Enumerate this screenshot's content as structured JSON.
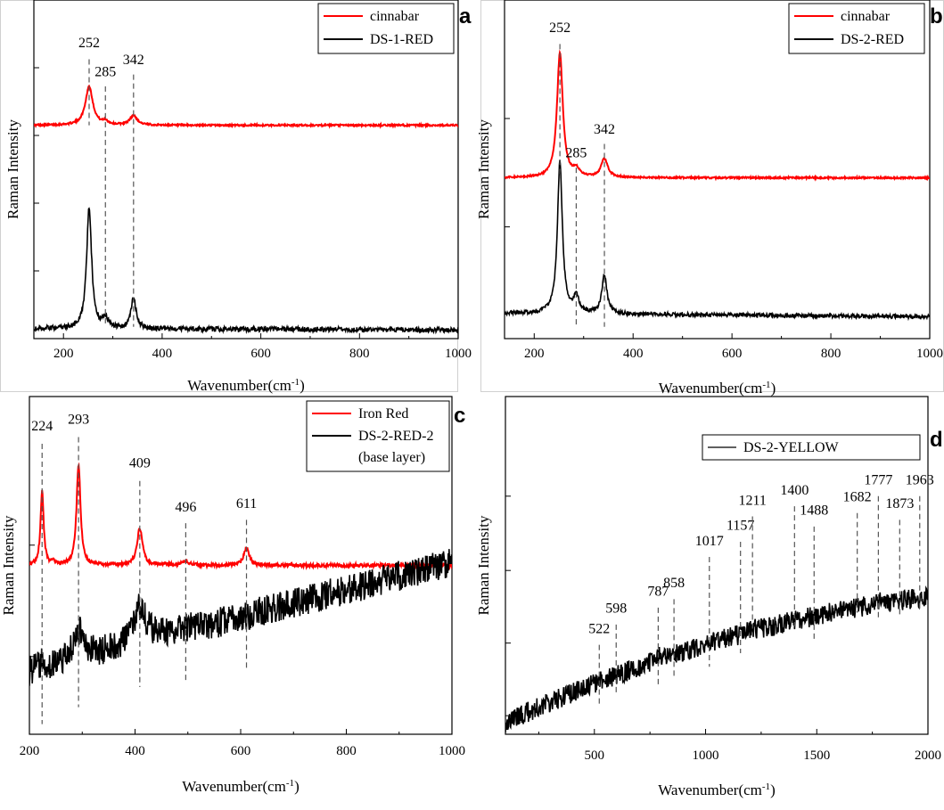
{
  "chart_data": [
    {
      "panel": "a",
      "type": "line",
      "xlabel": "Wavenumber(cm",
      "xlabel_sup": "-1",
      "xlabel_tail": ")",
      "ylabel": "Raman Intensity",
      "xlim": [
        140,
        1000
      ],
      "ylim": [
        0,
        10
      ],
      "xticks": [
        200,
        400,
        600,
        800,
        1000
      ],
      "yticks": [
        2,
        4,
        6,
        8
      ],
      "legend_position": "top-right",
      "series": [
        {
          "name": "cinnabar",
          "color": "#ff0000",
          "baseline": 6.3,
          "baseline_slope": 0,
          "peaks": [
            {
              "x": 252,
              "h": 1.15,
              "w": 9
            },
            {
              "x": 285,
              "h": 0.1,
              "w": 6
            },
            {
              "x": 342,
              "h": 0.28,
              "w": 9
            }
          ],
          "noise": 0.005
        },
        {
          "name": "DS-1-RED",
          "color": "#000000",
          "baseline": 0.3,
          "baseline_slope": -5e-05,
          "peaks": [
            {
              "x": 252,
              "h": 3.6,
              "w": 6
            },
            {
              "x": 285,
              "h": 0.32,
              "w": 6
            },
            {
              "x": 342,
              "h": 0.9,
              "w": 6
            }
          ],
          "noise": 0.015
        }
      ],
      "peak_labels": [
        "252",
        "285",
        "342"
      ],
      "peak_positions": [
        252,
        285,
        342
      ],
      "peak_label_levels": [
        8.6,
        7.75,
        8.1
      ],
      "peak_line_top": [
        8.25,
        7.45,
        7.8
      ],
      "peak_line_bottom": [
        6.3,
        0.4,
        0.35
      ]
    },
    {
      "panel": "b",
      "type": "line",
      "xlabel": "Wavenumber(cm",
      "xlabel_sup": "-1",
      "xlabel_tail": ")",
      "ylabel": "Raman Intensity",
      "xlim": [
        140,
        1000
      ],
      "ylim": [
        0,
        10
      ],
      "xticks": [
        200,
        400,
        600,
        800,
        1000
      ],
      "yticks": [
        3.3,
        6.5
      ],
      "legend_position": "top-right",
      "series": [
        {
          "name": "cinnabar",
          "color": "#ff0000",
          "baseline": 4.75,
          "baseline_slope": 0,
          "peaks": [
            {
              "x": 252,
              "h": 3.7,
              "w": 7
            },
            {
              "x": 285,
              "h": 0.22,
              "w": 7
            },
            {
              "x": 342,
              "h": 0.55,
              "w": 8
            }
          ],
          "noise": 0.005
        },
        {
          "name": "DS-2-RED",
          "color": "#000000",
          "baseline": 0.75,
          "baseline_slope": -0.00012,
          "peaks": [
            {
              "x": 252,
              "h": 4.5,
              "w": 6
            },
            {
              "x": 285,
              "h": 0.45,
              "w": 7
            },
            {
              "x": 342,
              "h": 1.15,
              "w": 6
            }
          ],
          "noise": 0.012
        }
      ],
      "peak_labels": [
        "252",
        "285",
        "342"
      ],
      "peak_positions": [
        252,
        285,
        342
      ],
      "peak_label_levels": [
        9.05,
        5.35,
        6.05
      ],
      "peak_line_top": [
        8.7,
        5.05,
        5.75
      ],
      "peak_line_bottom": [
        4.75,
        0.35,
        0.35
      ]
    },
    {
      "panel": "c",
      "type": "line",
      "xlabel": "Wavenumber(cm",
      "xlabel_sup": "-1",
      "xlabel_tail": ")",
      "ylabel": "Raman Intensity",
      "xlim": [
        200,
        1000
      ],
      "ylim": [
        0,
        10
      ],
      "xticks": [
        200,
        400,
        600,
        800,
        1000
      ],
      "yticks": [
        2.3,
        5.6
      ],
      "legend_position": "top-right",
      "legend_note": "(base  layer)",
      "series": [
        {
          "name": "Iron Red",
          "color": "#ff0000",
          "baseline": 5.0,
          "baseline_slope": 0,
          "peaks": [
            {
              "x": 224,
              "h": 2.2,
              "w": 3.5
            },
            {
              "x": 245,
              "h": 0.1,
              "w": 3
            },
            {
              "x": 293,
              "h": 3.0,
              "w": 4.5
            },
            {
              "x": 409,
              "h": 1.1,
              "w": 6
            },
            {
              "x": 460,
              "h": 0.05,
              "w": 5
            },
            {
              "x": 496,
              "h": 0.15,
              "w": 6
            },
            {
              "x": 611,
              "h": 0.52,
              "w": 6
            }
          ],
          "noise": 0.01
        },
        {
          "name": "DS-2-RED-2",
          "color": "#000000",
          "baseline": 1.85,
          "baseline_slope": 0.00405,
          "peaks": [
            {
              "x": 224,
              "h": 0.2,
              "w": 6
            },
            {
              "x": 293,
              "h": 0.85,
              "w": 12
            },
            {
              "x": 409,
              "h": 1.05,
              "w": 16
            },
            {
              "x": 496,
              "h": 0.1,
              "w": 10
            }
          ],
          "noise": 0.09
        }
      ],
      "peak_labels": [
        "224",
        "293",
        "409",
        "496",
        "611"
      ],
      "peak_positions": [
        224,
        293,
        409,
        496,
        611
      ],
      "peak_label_levels": [
        9.0,
        9.2,
        7.9,
        6.6,
        6.7
      ],
      "peak_line_top": [
        8.6,
        8.8,
        7.5,
        6.25,
        6.35
      ],
      "peak_line_bottom": [
        0.3,
        0.8,
        1.4,
        1.6,
        1.9
      ]
    },
    {
      "panel": "d",
      "type": "line",
      "xlabel": "Wavenumber(cm",
      "xlabel_sup": "-1",
      "xlabel_tail": ")",
      "ylabel": "Raman Intensity",
      "xlim": [
        100,
        2000
      ],
      "ylim": [
        0,
        10
      ],
      "xticks": [
        500,
        1000,
        1500,
        2000
      ],
      "yticks": [
        0.55,
        2.7,
        4.85,
        7.05
      ],
      "legend_position": "top-right",
      "series": [
        {
          "name": "DS-2-YELLOW",
          "color": "#000000",
          "baseline": 0.35,
          "baseline_slope": 0.0031,
          "curve": -6e-07,
          "peaks": [
            {
              "x": 787,
              "h": 0.1,
              "w": 12
            },
            {
              "x": 1211,
              "h": 0.1,
              "w": 12
            },
            {
              "x": 1777,
              "h": 0.08,
              "w": 10
            }
          ],
          "noise": 0.06
        }
      ],
      "peak_labels": [
        "522",
        "598",
        "787",
        "858",
        "1017",
        "1157",
        "1211",
        "1400",
        "1488",
        "1682",
        "1777",
        "1873",
        "1963"
      ],
      "peak_positions": [
        522,
        598,
        787,
        858,
        1017,
        1157,
        1211,
        1400,
        1488,
        1682,
        1777,
        1873,
        1963
      ],
      "peak_label_levels": [
        3.0,
        3.6,
        4.1,
        4.35,
        5.6,
        6.05,
        6.8,
        7.1,
        6.5,
        6.9,
        7.4,
        6.7,
        7.4
      ],
      "peak_line_top": [
        2.65,
        3.25,
        3.75,
        4.0,
        5.25,
        5.7,
        6.45,
        6.75,
        6.15,
        6.55,
        7.05,
        6.35,
        7.05
      ],
      "peak_line_bottom": [
        0.8,
        1.2,
        1.4,
        1.7,
        2.0,
        2.4,
        2.9,
        3.2,
        2.8,
        3.6,
        3.4,
        3.5,
        3.7
      ]
    }
  ],
  "panel_letters": [
    "a",
    "b",
    "c",
    "d"
  ],
  "colors": {
    "red": "#ff0000",
    "black": "#000000"
  }
}
